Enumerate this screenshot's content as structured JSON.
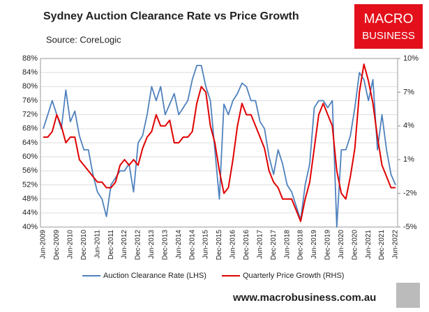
{
  "chart_data": {
    "type": "line",
    "title": "Sydney Auction Clearance Rate vs Price Growth",
    "subtitle": "Source: CoreLogic",
    "logo": [
      "MACRO",
      "BUSINESS"
    ],
    "footer": "www.macrobusiness.com.au",
    "categories": [
      "Jun-2009",
      null,
      null,
      "Dec-2009",
      null,
      null,
      "Jun-2010",
      null,
      null,
      "Dec-2010",
      null,
      null,
      "Jun-2011",
      null,
      null,
      "Dec-2011",
      null,
      null,
      "Jun-2012",
      null,
      null,
      "Dec-2012",
      null,
      null,
      "Jun-2013",
      null,
      null,
      "Dec-2013",
      null,
      null,
      "Jun-2014",
      null,
      null,
      "Dec-2014",
      null,
      null,
      "Jun-2015",
      null,
      null,
      "Dec-2015",
      null,
      null,
      "Jun-2016",
      null,
      null,
      "Dec-2016",
      null,
      null,
      "Jun-2017",
      null,
      null,
      "Dec-2017",
      null,
      null,
      "Jun-2018",
      null,
      null,
      "Dec-2018",
      null,
      null,
      "Jun-2019",
      null,
      null,
      "Dec-2019",
      null,
      null,
      "Jun-2020",
      null,
      null,
      "Dec-2020",
      null,
      null,
      "Jun-2021",
      null,
      null,
      "Dec-2021",
      null,
      null,
      "Jun-2022"
    ],
    "series": [
      {
        "name": "Auction Clearance Rate (LHS)",
        "color": "#4f81bd",
        "axis": "y",
        "values": [
          68,
          72,
          76,
          72,
          68,
          79,
          70,
          73,
          66,
          62,
          62,
          55,
          50,
          48,
          43,
          52,
          54,
          56,
          56,
          58,
          50,
          64,
          66,
          72,
          80,
          76,
          80,
          72,
          75,
          78,
          72,
          74,
          76,
          82,
          86,
          86,
          80,
          76,
          62,
          48,
          75,
          72,
          76,
          78,
          81,
          80,
          76,
          76,
          70,
          68,
          60,
          55,
          62,
          58,
          52,
          50,
          46,
          42,
          52,
          58,
          74,
          76,
          76,
          74,
          76,
          40,
          62,
          62,
          66,
          74,
          84,
          82,
          76,
          82,
          62,
          72,
          62,
          55,
          52
        ]
      },
      {
        "name": "Quarterly Price Growth (RHS)",
        "color": "#e00000",
        "axis": "y2",
        "values": [
          3,
          3,
          3.5,
          5,
          4,
          2.5,
          3,
          3,
          1,
          0.5,
          0,
          -0.5,
          -1,
          -1,
          -1.5,
          -1.5,
          -1,
          0.5,
          1,
          0.5,
          1,
          0.5,
          2,
          3,
          3.5,
          5,
          4,
          4,
          4.5,
          2.5,
          2.5,
          3,
          3,
          3.5,
          6,
          7.5,
          7,
          4,
          2.5,
          0,
          -2,
          -1.5,
          1,
          4,
          6,
          5,
          5,
          4,
          3,
          2,
          0,
          -1,
          -1.5,
          -2.5,
          -2.5,
          -2.5,
          -3.5,
          -4.5,
          -2.5,
          -1,
          2,
          5,
          6,
          5,
          4,
          0,
          -2,
          -2.5,
          -0.5,
          2,
          7,
          9.5,
          8,
          6,
          3,
          0.5,
          -0.5,
          -1.5,
          -1.5
        ]
      }
    ],
    "ylim": [
      40,
      88
    ],
    "yticks": [
      {
        "value": 40,
        "label": "40%"
      },
      {
        "value": 44,
        "label": "44%"
      },
      {
        "value": 48,
        "label": "48%"
      },
      {
        "value": 52,
        "label": "52%"
      },
      {
        "value": 56,
        "label": "56%"
      },
      {
        "value": 60,
        "label": "60%"
      },
      {
        "value": 64,
        "label": "64%"
      },
      {
        "value": 68,
        "label": "68%"
      },
      {
        "value": 72,
        "label": "72%"
      },
      {
        "value": 76,
        "label": "76%"
      },
      {
        "value": 80,
        "label": "80%"
      },
      {
        "value": 84,
        "label": "84%"
      },
      {
        "value": 88,
        "label": "88%"
      }
    ],
    "y2lim": [
      -5,
      10
    ],
    "y2ticks": [
      {
        "value": -5,
        "label": "-5%"
      },
      {
        "value": -2,
        "label": "-2%"
      },
      {
        "value": 1,
        "label": "1%"
      },
      {
        "value": 4,
        "label": "4%"
      },
      {
        "value": 7,
        "label": "7%"
      },
      {
        "value": 10,
        "label": "10%"
      }
    ],
    "grid": true,
    "legend": "bottom"
  }
}
